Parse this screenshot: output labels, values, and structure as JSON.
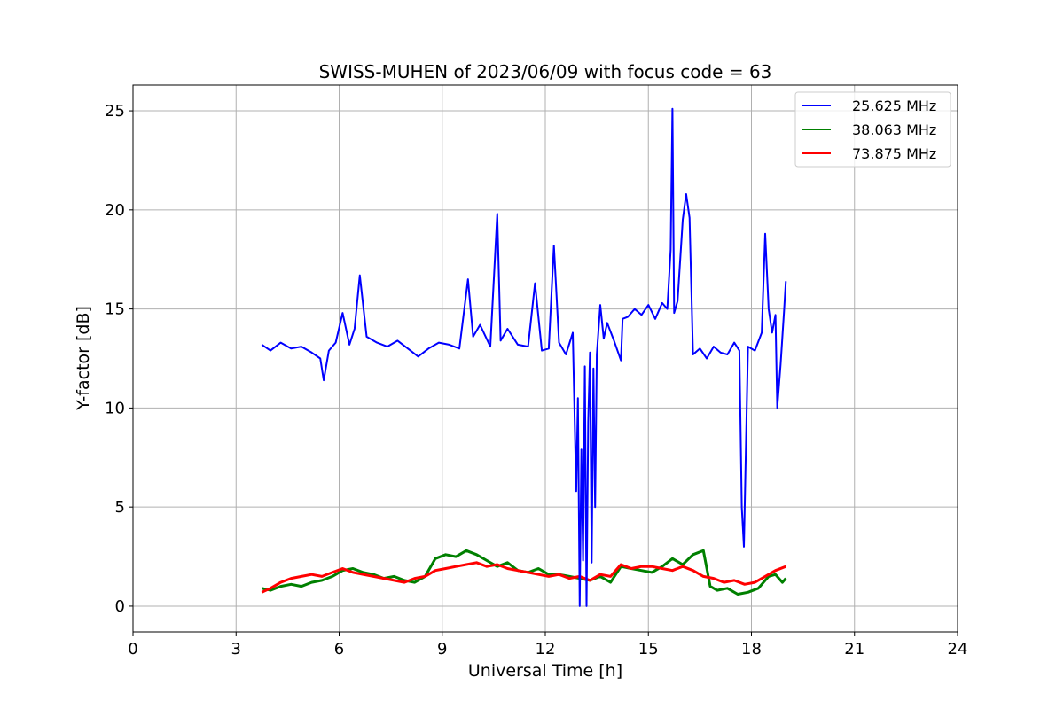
{
  "chart_data": {
    "type": "line",
    "title": "SWISS-MUHEN of 2023/06/09 with focus code = 63",
    "xlabel": "Universal Time [h]",
    "ylabel": "Y-factor [dB]",
    "xlim": [
      0,
      24
    ],
    "ylim": [
      -1.3,
      26.3
    ],
    "xticks": [
      0,
      3,
      6,
      9,
      12,
      15,
      18,
      21,
      24
    ],
    "yticks": [
      0,
      5,
      10,
      15,
      20,
      25
    ],
    "grid": true,
    "legend_position": "top-right",
    "series": [
      {
        "name": "25.625 MHz",
        "color": "#0000ff",
        "x": [
          3.75,
          4.0,
          4.3,
          4.6,
          4.9,
          5.2,
          5.45,
          5.55,
          5.7,
          5.9,
          6.1,
          6.3,
          6.45,
          6.6,
          6.8,
          7.1,
          7.4,
          7.7,
          8.0,
          8.3,
          8.6,
          8.9,
          9.2,
          9.5,
          9.75,
          9.9,
          10.1,
          10.4,
          10.6,
          10.7,
          10.9,
          11.2,
          11.5,
          11.7,
          11.9,
          12.1,
          12.25,
          12.4,
          12.6,
          12.8,
          12.9,
          12.95,
          13.0,
          13.05,
          13.1,
          13.15,
          13.2,
          13.25,
          13.3,
          13.35,
          13.4,
          13.45,
          13.5,
          13.6,
          13.7,
          13.8,
          14.0,
          14.2,
          14.25,
          14.4,
          14.6,
          14.8,
          15.0,
          15.2,
          15.4,
          15.55,
          15.65,
          15.7,
          15.75,
          15.85,
          16.0,
          16.1,
          16.2,
          16.3,
          16.5,
          16.7,
          16.9,
          17.1,
          17.3,
          17.5,
          17.65,
          17.72,
          17.78,
          17.9,
          18.1,
          18.3,
          18.4,
          18.5,
          18.6,
          18.7,
          18.75,
          18.85,
          18.95,
          19.0
        ],
        "values": [
          13.2,
          12.9,
          13.3,
          13.0,
          13.1,
          12.8,
          12.5,
          11.4,
          12.9,
          13.3,
          14.8,
          13.2,
          14.0,
          16.7,
          13.6,
          13.3,
          13.1,
          13.4,
          13.0,
          12.6,
          13.0,
          13.3,
          13.2,
          13.0,
          16.5,
          13.6,
          14.2,
          13.1,
          19.8,
          13.4,
          14.0,
          13.2,
          13.1,
          16.3,
          12.9,
          13.0,
          18.2,
          13.3,
          12.7,
          13.8,
          5.8,
          10.5,
          0.0,
          7.9,
          2.3,
          12.1,
          0.0,
          9.3,
          12.8,
          2.2,
          12.0,
          5.0,
          12.7,
          15.2,
          13.5,
          14.3,
          13.4,
          12.4,
          14.5,
          14.6,
          15.0,
          14.7,
          15.2,
          14.5,
          15.3,
          15.0,
          18.0,
          25.1,
          14.8,
          15.4,
          19.5,
          20.8,
          19.6,
          12.7,
          13.0,
          12.5,
          13.1,
          12.8,
          12.7,
          13.3,
          12.9,
          5.0,
          3.0,
          13.1,
          12.9,
          13.8,
          18.8,
          15.0,
          13.8,
          14.7,
          10.0,
          12.2,
          14.9,
          16.4
        ]
      },
      {
        "name": "38.063 MHz",
        "color": "#008000",
        "x": [
          3.75,
          4.0,
          4.3,
          4.6,
          4.9,
          5.2,
          5.5,
          5.8,
          6.1,
          6.4,
          6.7,
          7.0,
          7.3,
          7.6,
          7.9,
          8.2,
          8.5,
          8.8,
          9.1,
          9.4,
          9.7,
          10.0,
          10.3,
          10.6,
          10.9,
          11.2,
          11.5,
          11.8,
          12.1,
          12.4,
          12.7,
          13.0,
          13.3,
          13.6,
          13.9,
          14.2,
          14.5,
          14.8,
          15.1,
          15.4,
          15.7,
          16.0,
          16.3,
          16.6,
          16.8,
          17.0,
          17.3,
          17.6,
          17.9,
          18.2,
          18.5,
          18.7,
          18.9,
          19.0
        ],
        "values": [
          0.9,
          0.8,
          1.0,
          1.1,
          1.0,
          1.2,
          1.3,
          1.5,
          1.8,
          1.9,
          1.7,
          1.6,
          1.4,
          1.5,
          1.3,
          1.2,
          1.5,
          2.4,
          2.6,
          2.5,
          2.8,
          2.6,
          2.3,
          2.0,
          2.2,
          1.8,
          1.7,
          1.9,
          1.6,
          1.6,
          1.5,
          1.4,
          1.3,
          1.5,
          1.2,
          2.0,
          1.9,
          1.8,
          1.7,
          2.0,
          2.4,
          2.1,
          2.6,
          2.8,
          1.0,
          0.8,
          0.9,
          0.6,
          0.7,
          0.9,
          1.5,
          1.6,
          1.2,
          1.4
        ]
      },
      {
        "name": "73.875 MHz",
        "color": "#ff0000",
        "x": [
          3.75,
          4.0,
          4.3,
          4.6,
          4.9,
          5.2,
          5.5,
          5.8,
          6.1,
          6.4,
          6.7,
          7.0,
          7.3,
          7.6,
          7.9,
          8.2,
          8.5,
          8.8,
          9.1,
          9.4,
          9.7,
          10.0,
          10.3,
          10.6,
          10.9,
          11.2,
          11.5,
          11.8,
          12.1,
          12.4,
          12.7,
          13.0,
          13.3,
          13.6,
          13.9,
          14.2,
          14.5,
          14.8,
          15.1,
          15.4,
          15.7,
          16.0,
          16.3,
          16.6,
          16.9,
          17.2,
          17.5,
          17.8,
          18.1,
          18.4,
          18.7,
          19.0
        ],
        "values": [
          0.7,
          0.9,
          1.2,
          1.4,
          1.5,
          1.6,
          1.5,
          1.7,
          1.9,
          1.7,
          1.6,
          1.5,
          1.4,
          1.3,
          1.2,
          1.4,
          1.5,
          1.8,
          1.9,
          2.0,
          2.1,
          2.2,
          2.0,
          2.1,
          1.9,
          1.8,
          1.7,
          1.6,
          1.5,
          1.6,
          1.4,
          1.5,
          1.3,
          1.6,
          1.5,
          2.1,
          1.9,
          2.0,
          2.0,
          1.9,
          1.8,
          2.0,
          1.8,
          1.5,
          1.4,
          1.2,
          1.3,
          1.1,
          1.2,
          1.5,
          1.8,
          2.0
        ]
      }
    ]
  }
}
